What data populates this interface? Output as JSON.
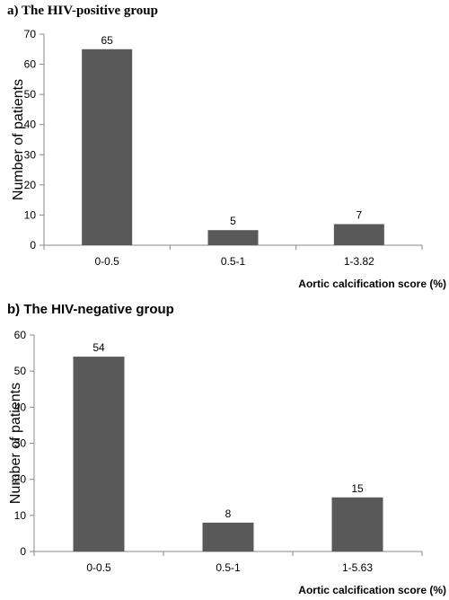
{
  "chart_data": [
    {
      "type": "bar",
      "title": "a)   The HIV-positive group",
      "categories": [
        "0-0.5",
        "0.5-1",
        "1-3.82"
      ],
      "values": [
        65,
        5,
        7
      ],
      "data_labels": [
        "65",
        "5",
        "7"
      ],
      "xlabel": "Aortic calcification score (%)",
      "ylabel": "Number of patients",
      "ylim": [
        0,
        70
      ],
      "yticks": [
        0,
        10,
        20,
        30,
        40,
        50,
        60,
        70
      ],
      "grid": false,
      "bar_color": "#595959"
    },
    {
      "type": "bar",
      "title": "b) The HIV-negative group",
      "categories": [
        "0-0.5",
        "0.5-1",
        "1-5.63"
      ],
      "values": [
        54,
        8,
        15
      ],
      "data_labels": [
        "54",
        "8",
        "15"
      ],
      "xlabel": "Aortic calcification score (%)",
      "ylabel": "Number of patients",
      "ylim": [
        0,
        60
      ],
      "yticks": [
        0,
        10,
        20,
        30,
        40,
        50,
        60
      ],
      "grid": false,
      "bar_color": "#595959"
    }
  ]
}
